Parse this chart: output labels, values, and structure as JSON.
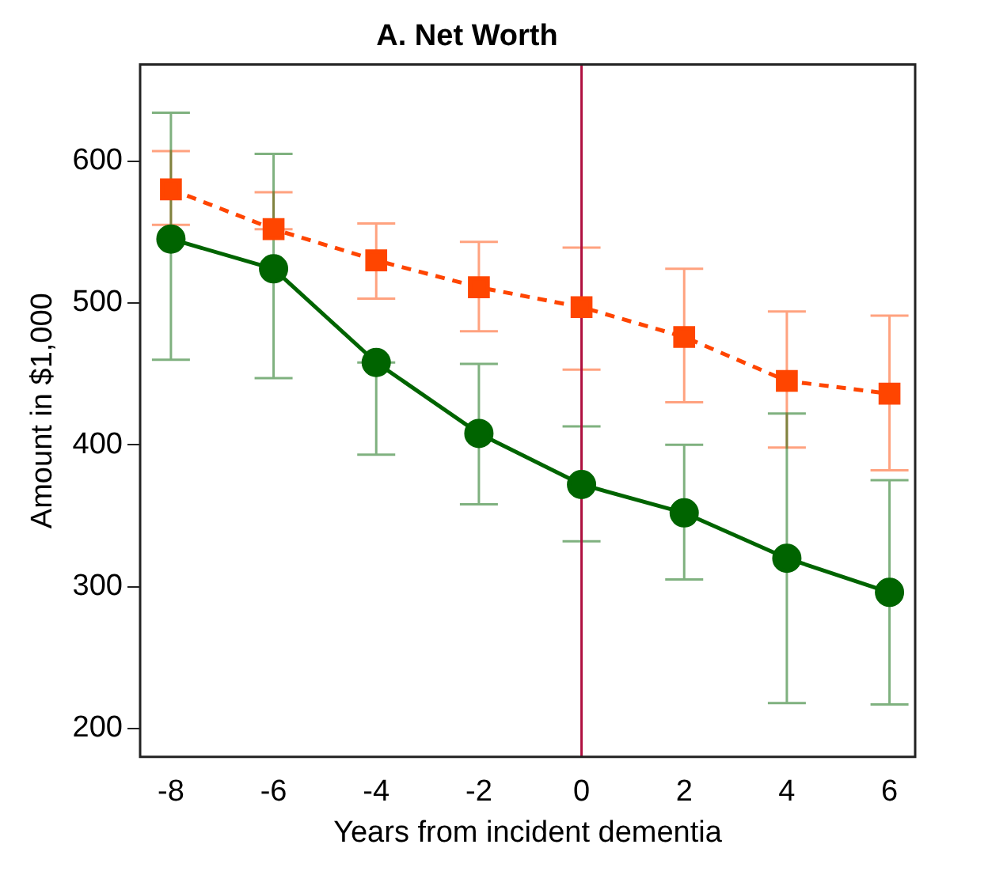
{
  "chart_data": {
    "type": "line",
    "title": "A. Net Worth",
    "xlabel": "Years from incident dementia",
    "ylabel": "Amount in $1,000",
    "x": [
      -8,
      -6,
      -4,
      -2,
      0,
      2,
      4,
      6
    ],
    "series": [
      {
        "name": null,
        "color": "#ff4500",
        "line_style": "dashed",
        "marker": "square",
        "values": [
          580,
          552,
          530,
          511,
          497,
          476,
          445,
          436
        ],
        "errors": [
          [
            555,
            607
          ],
          [
            552,
            578
          ],
          [
            503,
            556
          ],
          [
            480,
            543
          ],
          [
            453,
            539
          ],
          [
            430,
            524
          ],
          [
            398,
            494
          ],
          [
            382,
            491
          ]
        ]
      },
      {
        "name": null,
        "color": "#006400",
        "line_style": "solid",
        "marker": "circle",
        "values": [
          545,
          524,
          458,
          408,
          372,
          352,
          320,
          296
        ],
        "errors": [
          [
            460,
            634
          ],
          [
            447,
            605
          ],
          [
            393,
            458
          ],
          [
            358,
            457
          ],
          [
            332,
            413
          ],
          [
            305,
            400
          ],
          [
            218,
            422
          ],
          [
            217,
            375
          ]
        ]
      }
    ],
    "xlim": [
      -8.6,
      6.5
    ],
    "xticks": [
      -8,
      -6,
      -4,
      -2,
      0,
      2,
      4,
      6
    ],
    "ylim": [
      180,
      668
    ],
    "yticks": [
      200,
      300,
      400,
      500,
      600
    ],
    "ref_lines": [
      {
        "axis": "x",
        "value": 0,
        "color": "#b01040"
      }
    ],
    "grid": false,
    "legend": false
  }
}
